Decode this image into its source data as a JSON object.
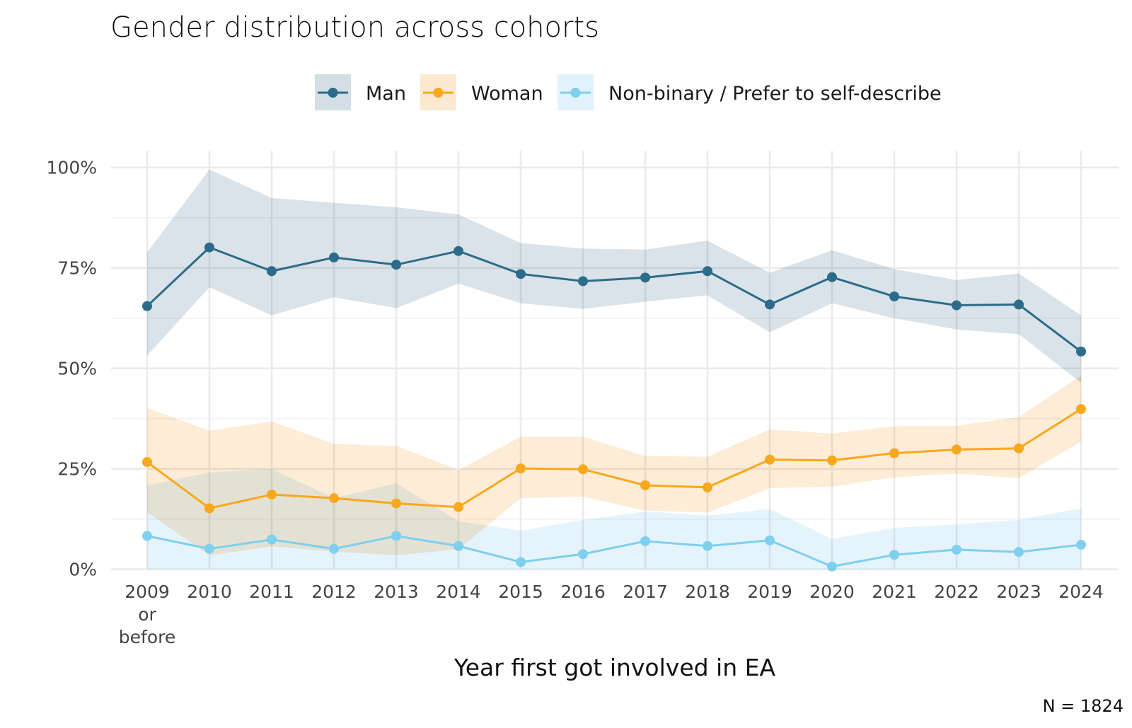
{
  "chart_data": {
    "type": "line",
    "title": "Gender distribution across cohorts",
    "xlabel": "Year first got involved in EA",
    "ylabel": "",
    "caption": "N = 1824",
    "categories": [
      "2009\nor\nbefore",
      "2010",
      "2011",
      "2012",
      "2013",
      "2014",
      "2015",
      "2016",
      "2017",
      "2018",
      "2019",
      "2020",
      "2021",
      "2022",
      "2023",
      "2024"
    ],
    "ylim": [
      0,
      100
    ],
    "yticks": [
      0,
      25,
      50,
      75,
      100
    ],
    "ytick_labels": [
      "0%",
      "25%",
      "50%",
      "75%",
      "100%"
    ],
    "grid": true,
    "legend_position": "top",
    "series": [
      {
        "name": "Man",
        "color": "#2c6b8a",
        "band_color": "#d3dee5",
        "values": [
          65.5,
          80.1,
          74.2,
          77.6,
          75.8,
          79.2,
          73.5,
          71.7,
          72.6,
          74.2,
          65.9,
          72.7,
          67.9,
          65.7,
          65.9,
          54.2
        ],
        "lower": [
          53.2,
          70.2,
          63.2,
          67.7,
          65.0,
          71.1,
          66.2,
          64.8,
          66.6,
          68.2,
          59.0,
          66.2,
          62.5,
          59.7,
          58.5,
          46.4
        ],
        "upper": [
          78.9,
          99.5,
          92.4,
          91.2,
          90.1,
          88.3,
          81.2,
          79.8,
          79.6,
          81.8,
          73.8,
          79.4,
          74.7,
          72.0,
          73.6,
          63.2
        ]
      },
      {
        "name": "Woman",
        "color": "#f8a81c",
        "band_color": "#fde9cf",
        "values": [
          26.7,
          15.2,
          18.6,
          17.7,
          16.4,
          15.5,
          25.1,
          24.9,
          20.9,
          20.4,
          27.3,
          27.1,
          28.9,
          29.8,
          30.1,
          39.9
        ],
        "lower": [
          14.2,
          3.5,
          5.7,
          4.4,
          3.5,
          5.0,
          17.7,
          18.1,
          14.6,
          14.1,
          20.2,
          20.6,
          22.9,
          23.8,
          22.7,
          31.8
        ],
        "upper": [
          40.1,
          34.5,
          36.8,
          31.2,
          30.7,
          24.7,
          33.0,
          33.0,
          28.2,
          28.0,
          34.8,
          33.8,
          35.6,
          35.7,
          37.9,
          48.2
        ]
      },
      {
        "name": "Non-binary / Prefer to self-describe",
        "color": "#7fcfee",
        "band_color": "#e0f2fc",
        "values": [
          8.3,
          5.1,
          7.4,
          5.1,
          8.3,
          5.8,
          1.8,
          3.8,
          7.0,
          5.8,
          7.2,
          0.7,
          3.6,
          4.9,
          4.3,
          6.1
        ],
        "lower": [
          0,
          0,
          0,
          0,
          0,
          0,
          0,
          0,
          0,
          0,
          0,
          0,
          0,
          0,
          0,
          0
        ],
        "upper": [
          20.9,
          24.1,
          25.0,
          17.7,
          21.4,
          12.0,
          9.6,
          12.3,
          14.4,
          13.4,
          15.0,
          7.6,
          10.3,
          11.2,
          12.3,
          15.2
        ]
      }
    ]
  }
}
